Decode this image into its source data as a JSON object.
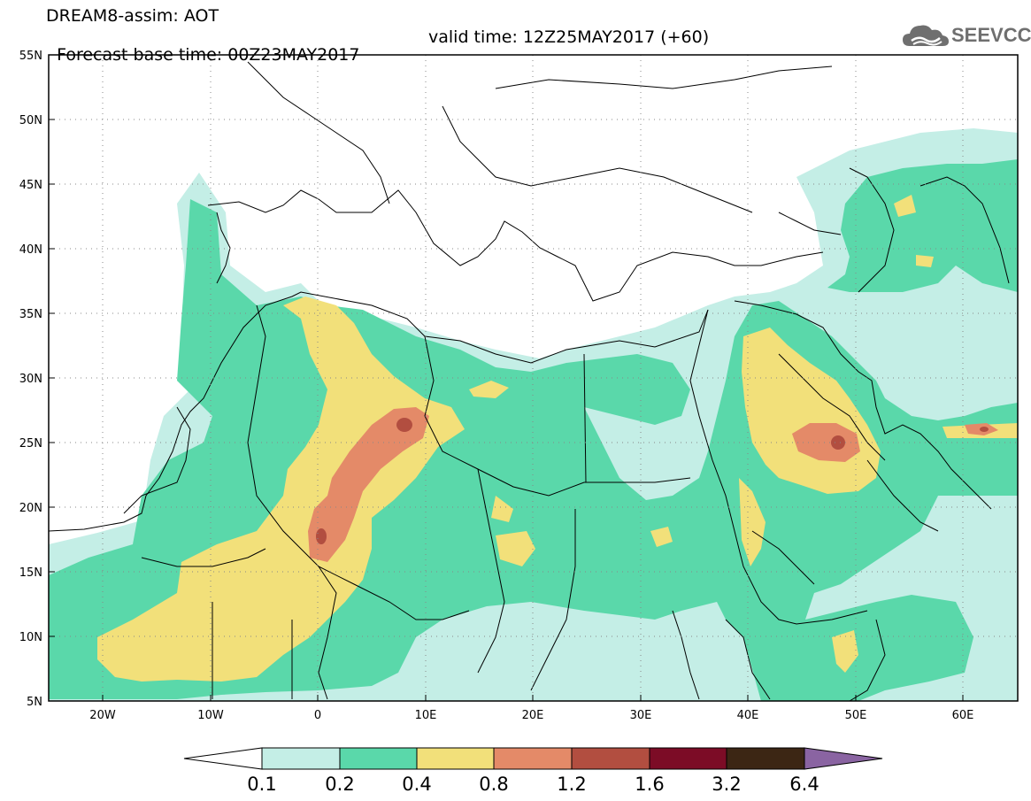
{
  "header": {
    "line1": "DREAM8-assim: AOT",
    "base_time": "Forecast base time: 00Z23MAY2017",
    "valid_time": "valid time: 12Z25MAY2017 (+60)"
  },
  "logo": {
    "text": "SEEVCCC",
    "icon": "cloud-icon"
  },
  "axes": {
    "lon_range": [
      -25,
      65
    ],
    "lat_range": [
      5,
      55
    ],
    "lat_ticks": [
      "5N",
      "10N",
      "15N",
      "20N",
      "25N",
      "30N",
      "35N",
      "40N",
      "45N",
      "50N",
      "55N"
    ],
    "lon_ticks": [
      "20W",
      "10W",
      "0",
      "10E",
      "20E",
      "30E",
      "40E",
      "50E",
      "60E"
    ],
    "grid": "dotted"
  },
  "colorbar": {
    "labels": [
      "0.1",
      "0.2",
      "0.4",
      "0.8",
      "1.2",
      "1.6",
      "3.2",
      "6.4"
    ],
    "colors": [
      "#c4eee6",
      "#5ad8aa",
      "#f2e07a",
      "#e48a68",
      "#b24e40",
      "#7c0c26",
      "#3c2614",
      "#8a64a2"
    ],
    "under_color": "#ffffff"
  }
}
